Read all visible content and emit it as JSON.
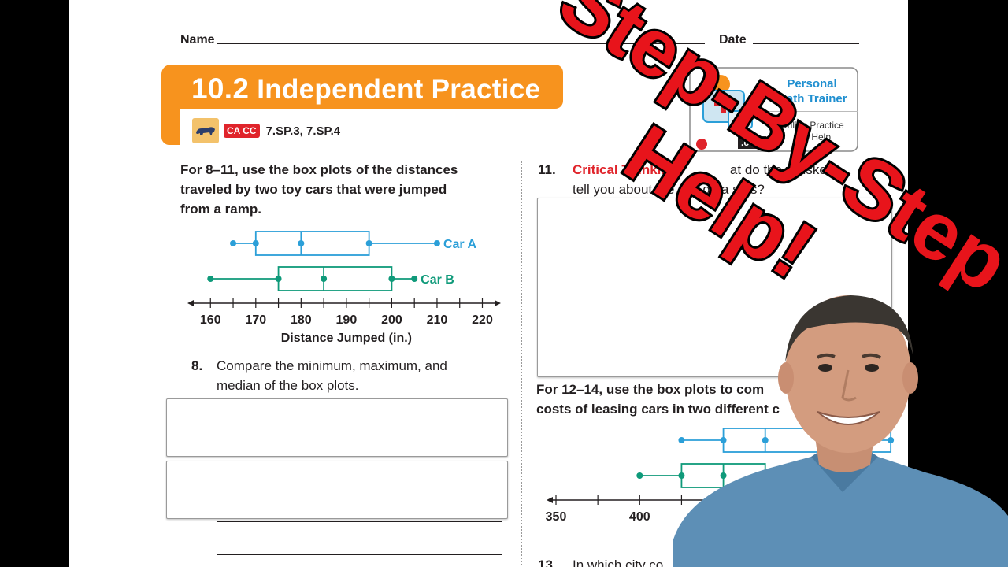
{
  "header": {
    "name_label": "Name",
    "date_label": "Date"
  },
  "banner": {
    "lesson_number": "10.2",
    "title": "Independent Practice",
    "ca_badge": "CA CC",
    "standards": "7.SP.3, 7.SP.4"
  },
  "pmt": {
    "title_line1": "Personal",
    "title_line2": "Math Trainer",
    "sub_line1": "Online Practice",
    "sub_line2": "and Help",
    "com": ".com"
  },
  "left": {
    "intro_line1": "For 8–11, use the box plots of the distances",
    "intro_line2": "traveled by two toy cars that were jumped",
    "intro_line3": "from a ramp.",
    "q8_num": "8.",
    "q8_line1": "Compare the minimum, maximum, and",
    "q8_line2": "median of the box plots."
  },
  "right": {
    "q11_num": "11.",
    "q11_label": "Critical Thinking",
    "q11_line1_tail": "at do the whiskers",
    "q11_line2": "tell you about the two data sets?",
    "intro_line1": "For 12–14, use the box plots to com",
    "intro_line2": "costs of leasing cars in two different c",
    "q13_num": "13.",
    "q13_text": "In which city co"
  },
  "overlay": {
    "line1": "Step-By-Step",
    "line2": "Help!"
  },
  "chart_data": [
    {
      "type": "box",
      "xlabel": "Distance Jumped (in.)",
      "x_ticks": [
        160,
        170,
        180,
        190,
        200,
        210,
        220
      ],
      "xlim": [
        157,
        222
      ],
      "series": [
        {
          "name": "Car A",
          "color": "#2b9fd8",
          "min": 165,
          "q1": 170,
          "median": 180,
          "q3": 195,
          "max": 210
        },
        {
          "name": "Car B",
          "color": "#0f9a7a",
          "min": 160,
          "q1": 175,
          "median": 185,
          "q3": 200,
          "max": 205
        }
      ]
    },
    {
      "type": "box",
      "x_ticks": [
        350,
        400,
        450,
        500
      ],
      "xlim": [
        350,
        525
      ],
      "series": [
        {
          "color": "#2b9fd8",
          "min": 425,
          "q1": 450,
          "median": 475,
          "q3": 550
        },
        {
          "color": "#0f9a7a",
          "min": 400,
          "q1": 425,
          "median": 450,
          "q3": 475
        }
      ]
    }
  ]
}
